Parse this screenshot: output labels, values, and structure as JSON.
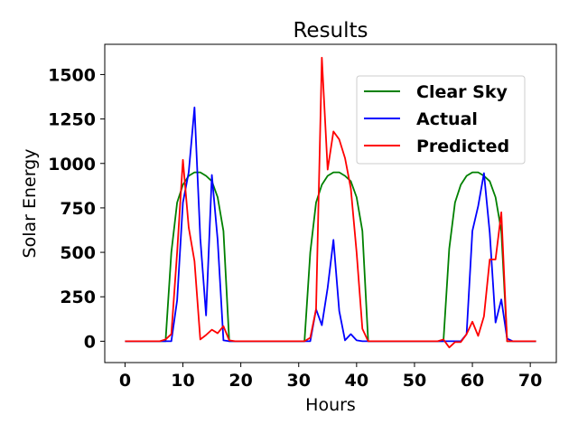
{
  "chart_data": {
    "type": "line",
    "title": "Results",
    "xlabel": "Hours",
    "ylabel": "Solar Energy",
    "xlim": [
      -3.5,
      74.5
    ],
    "ylim": [
      -120,
      1670
    ],
    "xticks": [
      0,
      10,
      20,
      30,
      40,
      50,
      60,
      70
    ],
    "yticks": [
      0,
      250,
      500,
      750,
      1000,
      1250,
      1500
    ],
    "grid": false,
    "legend_position": "upper-right",
    "series": [
      {
        "name": "Clear Sky",
        "color": "#008000",
        "x": [
          0,
          1,
          2,
          3,
          4,
          5,
          6,
          7,
          8,
          9,
          10,
          11,
          12,
          13,
          14,
          15,
          16,
          17,
          18,
          19,
          20,
          21,
          22,
          23,
          24,
          25,
          26,
          27,
          28,
          29,
          30,
          31,
          32,
          33,
          34,
          35,
          36,
          37,
          38,
          39,
          40,
          41,
          42,
          43,
          44,
          45,
          46,
          47,
          48,
          49,
          50,
          51,
          52,
          53,
          54,
          55,
          56,
          57,
          58,
          59,
          60,
          61,
          62,
          63,
          64,
          65,
          66,
          67,
          68,
          69,
          70,
          71
        ],
        "values": [
          0,
          0,
          0,
          0,
          0,
          0,
          0,
          0,
          500,
          780,
          880,
          930,
          950,
          950,
          930,
          900,
          810,
          620,
          0,
          0,
          0,
          0,
          0,
          0,
          0,
          0,
          0,
          0,
          0,
          0,
          0,
          0,
          500,
          780,
          880,
          930,
          950,
          950,
          930,
          900,
          810,
          620,
          0,
          0,
          0,
          0,
          0,
          0,
          0,
          0,
          0,
          0,
          0,
          0,
          0,
          0,
          520,
          780,
          880,
          930,
          950,
          950,
          930,
          900,
          810,
          620,
          0,
          0,
          0,
          0,
          0,
          0
        ]
      },
      {
        "name": "Actual",
        "color": "#0000ff",
        "x": [
          0,
          1,
          2,
          3,
          4,
          5,
          6,
          7,
          8,
          9,
          10,
          11,
          12,
          13,
          14,
          15,
          16,
          17,
          18,
          19,
          20,
          21,
          22,
          23,
          24,
          25,
          26,
          27,
          28,
          29,
          30,
          31,
          32,
          33,
          34,
          35,
          36,
          37,
          38,
          39,
          40,
          41,
          42,
          43,
          44,
          45,
          46,
          47,
          48,
          49,
          50,
          51,
          52,
          53,
          54,
          55,
          56,
          57,
          58,
          59,
          60,
          61,
          62,
          63,
          64,
          65,
          66,
          67,
          68,
          69,
          70,
          71
        ],
        "values": [
          0,
          0,
          0,
          0,
          0,
          0,
          0,
          0,
          0,
          230,
          780,
          950,
          1315,
          580,
          145,
          935,
          570,
          5,
          0,
          0,
          0,
          0,
          0,
          0,
          0,
          0,
          0,
          0,
          0,
          0,
          0,
          0,
          0,
          180,
          90,
          300,
          570,
          170,
          5,
          40,
          5,
          0,
          0,
          0,
          0,
          0,
          0,
          0,
          0,
          0,
          0,
          0,
          0,
          0,
          0,
          0,
          0,
          0,
          0,
          40,
          620,
          760,
          945,
          610,
          105,
          235,
          15,
          0,
          0,
          0,
          0,
          0
        ]
      },
      {
        "name": "Predicted",
        "color": "#ff0000",
        "x": [
          0,
          1,
          2,
          3,
          4,
          5,
          6,
          7,
          8,
          9,
          10,
          11,
          12,
          13,
          14,
          15,
          16,
          17,
          18,
          19,
          20,
          21,
          22,
          23,
          24,
          25,
          26,
          27,
          28,
          29,
          30,
          31,
          32,
          33,
          34,
          35,
          36,
          37,
          38,
          39,
          40,
          41,
          42,
          43,
          44,
          45,
          46,
          47,
          48,
          49,
          50,
          51,
          52,
          53,
          54,
          55,
          56,
          57,
          58,
          59,
          60,
          61,
          62,
          63,
          64,
          65,
          66,
          67,
          68,
          69,
          70,
          71
        ],
        "values": [
          0,
          0,
          0,
          0,
          0,
          0,
          0,
          10,
          40,
          500,
          1020,
          640,
          450,
          10,
          35,
          65,
          45,
          85,
          5,
          0,
          0,
          0,
          0,
          0,
          0,
          0,
          0,
          0,
          0,
          0,
          0,
          0,
          20,
          180,
          1595,
          965,
          1180,
          1135,
          1030,
          860,
          500,
          70,
          0,
          0,
          0,
          0,
          0,
          0,
          0,
          0,
          0,
          0,
          0,
          0,
          0,
          10,
          -35,
          -5,
          -5,
          40,
          110,
          30,
          140,
          460,
          460,
          725,
          0,
          0,
          0,
          0,
          0,
          0
        ]
      }
    ]
  }
}
